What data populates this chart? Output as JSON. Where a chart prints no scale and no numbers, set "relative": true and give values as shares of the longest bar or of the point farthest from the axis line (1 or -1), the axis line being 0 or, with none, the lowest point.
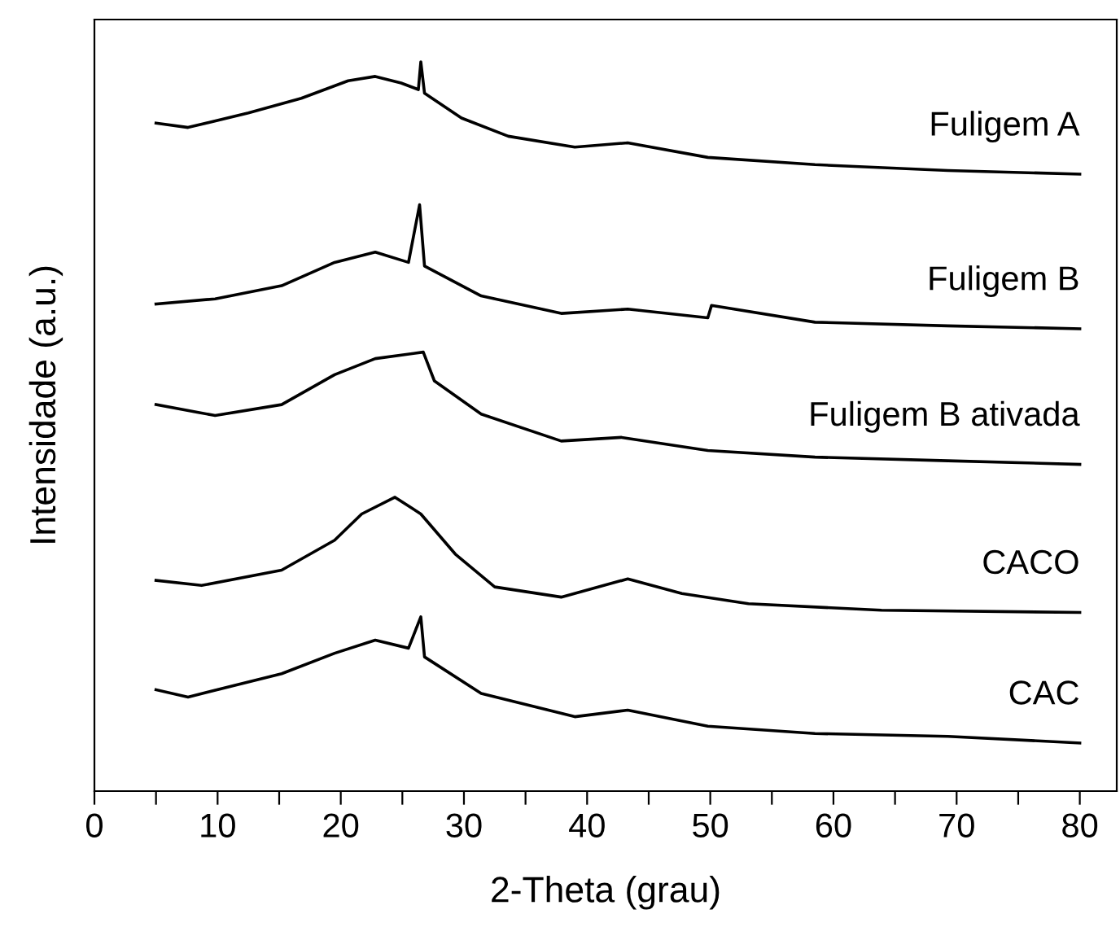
{
  "chart_data": {
    "type": "line",
    "relative": true,
    "xlabel": "2-Theta (grau)",
    "ylabel": "Intensidade (a.u.)",
    "xlim": [
      0,
      83
    ],
    "xticks": [
      0,
      {
        "value": 5,
        "label": null
      },
      10,
      {
        "value": 15,
        "label": null
      },
      20,
      {
        "value": 25,
        "label": null
      },
      30,
      {
        "value": 35,
        "label": null
      },
      40,
      {
        "value": 45,
        "label": null
      },
      50,
      {
        "value": 55,
        "label": null
      },
      60,
      {
        "value": 65,
        "label": null
      },
      70,
      {
        "value": 75,
        "label": null
      },
      80
    ],
    "grid": false,
    "legend": false,
    "marker": "none",
    "line_style": "solid",
    "series": [
      {
        "name": "Fuligem A",
        "color": "#000000",
        "x": [
          5,
          7.6,
          12.5,
          16.8,
          20.6,
          22.8,
          24.9,
          26.3,
          26.5,
          26.8,
          29.8,
          33.6,
          39,
          43.3,
          49.8,
          58.5,
          69.3,
          80
        ],
        "values": [
          0.916,
          0.91,
          0.93,
          0.95,
          0.974,
          0.98,
          0.971,
          0.962,
          1.0,
          0.957,
          0.923,
          0.898,
          0.883,
          0.889,
          0.869,
          0.859,
          0.851,
          0.846
        ]
      },
      {
        "name": "Fuligem B",
        "color": "#000000",
        "x": [
          5,
          9.8,
          15.2,
          19.5,
          22.8,
          25.5,
          26.4,
          26.8,
          31.4,
          37.9,
          43.3,
          49.8,
          50.1,
          58.5,
          69.3,
          80
        ],
        "values": [
          0.668,
          0.675,
          0.693,
          0.725,
          0.739,
          0.725,
          0.804,
          0.72,
          0.679,
          0.655,
          0.661,
          0.649,
          0.666,
          0.643,
          0.638,
          0.634
        ]
      },
      {
        "name": "Fuligem B ativada",
        "color": "#000000",
        "x": [
          5,
          9.8,
          15.2,
          19.5,
          22.8,
          26.7,
          27.6,
          31.4,
          37.9,
          42.8,
          49.8,
          58.5,
          69.3,
          80
        ],
        "values": [
          0.53,
          0.515,
          0.53,
          0.571,
          0.593,
          0.602,
          0.5625,
          0.517,
          0.48,
          0.485,
          0.467,
          0.458,
          0.453,
          0.448
        ]
      },
      {
        "name": "CACO",
        "color": "#000000",
        "x": [
          5,
          8.7,
          15.2,
          19.5,
          21.7,
          24.4,
          26.5,
          29.3,
          32.5,
          37.9,
          43.3,
          47.7,
          53.1,
          63.9,
          80
        ],
        "values": [
          0.289,
          0.282,
          0.303,
          0.344,
          0.38,
          0.403,
          0.38,
          0.325,
          0.28,
          0.266,
          0.291,
          0.271,
          0.257,
          0.248,
          0.245
        ]
      },
      {
        "name": "CAC",
        "color": "#000000",
        "x": [
          5,
          7.6,
          15.2,
          19.5,
          22.8,
          25.5,
          26.5,
          26.8,
          31.4,
          39,
          43.3,
          49.8,
          58.5,
          69.3,
          80
        ],
        "values": [
          0.139,
          0.129,
          0.161,
          0.189,
          0.207,
          0.196,
          0.239,
          0.184,
          0.134,
          0.102,
          0.111,
          0.089,
          0.079,
          0.075,
          0.066
        ]
      }
    ]
  }
}
